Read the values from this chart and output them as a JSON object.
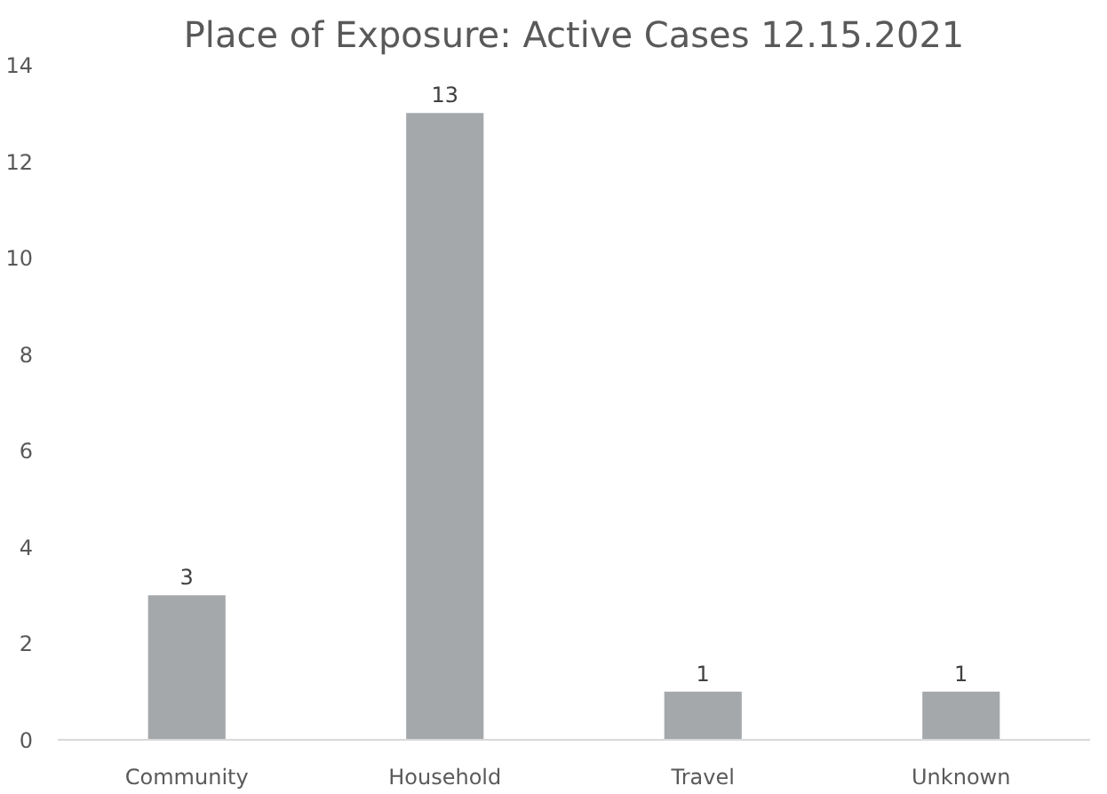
{
  "chart_data": {
    "type": "bar",
    "title": "Place of Exposure: Active Cases 12.15.2021",
    "categories": [
      "Community",
      "Household",
      "Travel",
      "Unknown"
    ],
    "values": [
      3,
      13,
      1,
      1
    ],
    "color": "#a5a8ab",
    "ylim": [
      0,
      14
    ],
    "yticks": [
      0,
      2,
      4,
      6,
      8,
      10,
      12,
      14
    ],
    "grid": false,
    "data_labels": true
  }
}
